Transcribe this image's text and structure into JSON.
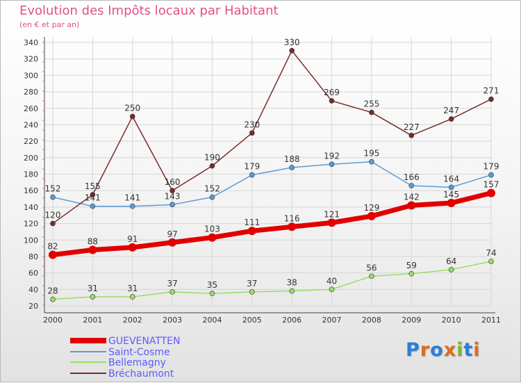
{
  "title": "Evolution des Impôts locaux par Habitant",
  "subtitle": "(en € et par an)",
  "logo_text": "Proxiti",
  "chart_data": {
    "type": "line",
    "title": "Evolution des Impôts locaux par Habitant",
    "subtitle": "(en € et par an)",
    "xlabel": "",
    "ylabel": "",
    "x": [
      "2000",
      "2001",
      "2002",
      "2003",
      "2004",
      "2005",
      "2006",
      "2007",
      "2008",
      "2009",
      "2010",
      "2011"
    ],
    "ylim": [
      20,
      340
    ],
    "yticks": [
      20,
      40,
      60,
      80,
      100,
      120,
      140,
      160,
      180,
      200,
      220,
      240,
      260,
      280,
      300,
      320,
      340
    ],
    "grid": true,
    "legend_position": "bottom-left",
    "series": [
      {
        "name": "GUEVENATTEN",
        "color": "#e00000",
        "values": [
          82,
          88,
          91,
          97,
          103,
          111,
          116,
          121,
          129,
          142,
          145,
          157
        ]
      },
      {
        "name": "Saint-Cosme",
        "color": "#5b9bd5",
        "values": [
          152,
          141,
          141,
          143,
          152,
          179,
          188,
          192,
          195,
          166,
          164,
          179
        ]
      },
      {
        "name": "Bellemagny",
        "color": "#99dd66",
        "values": [
          28,
          31,
          31,
          37,
          35,
          37,
          38,
          40,
          56,
          59,
          64,
          74
        ]
      },
      {
        "name": "Bréchaumont",
        "color": "#7a2a2a",
        "values": [
          120,
          155,
          250,
          160,
          190,
          230,
          330,
          269,
          255,
          227,
          247,
          271
        ]
      }
    ]
  }
}
